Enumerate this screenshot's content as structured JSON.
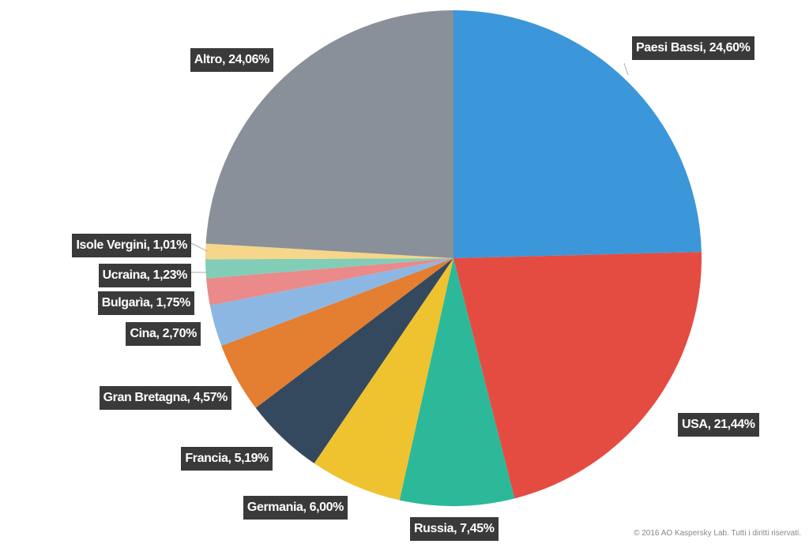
{
  "chart_data": {
    "type": "pie",
    "values": [
      24.6,
      21.44,
      7.45,
      6.0,
      5.19,
      4.57,
      2.7,
      1.75,
      1.23,
      1.01,
      24.06
    ],
    "value_labels": [
      "Paesi Bassi, 24,60%",
      "USA, 21,44%",
      "Russia, 7,45%",
      "Germania, 6,00%",
      "Francia, 5,19%",
      "Gran Bretagna, 4,57%",
      "Cina, 2,70%",
      "Bulgarìa, 1,75%",
      "Ucraina, 1,23%",
      "Isole Vergini, 1,01%",
      "Altro, 24,06%"
    ],
    "colors": [
      "#3b97d9",
      "#e44c41",
      "#2bb99a",
      "#efc230",
      "#34495e",
      "#e47e30",
      "#8cb7e3",
      "#ea8a8a",
      "#82cdb8",
      "#f5d68a",
      "#8a9099"
    ]
  },
  "footer": "© 2016 AO Kaspersky Lab. Tutti i diritti riservati."
}
